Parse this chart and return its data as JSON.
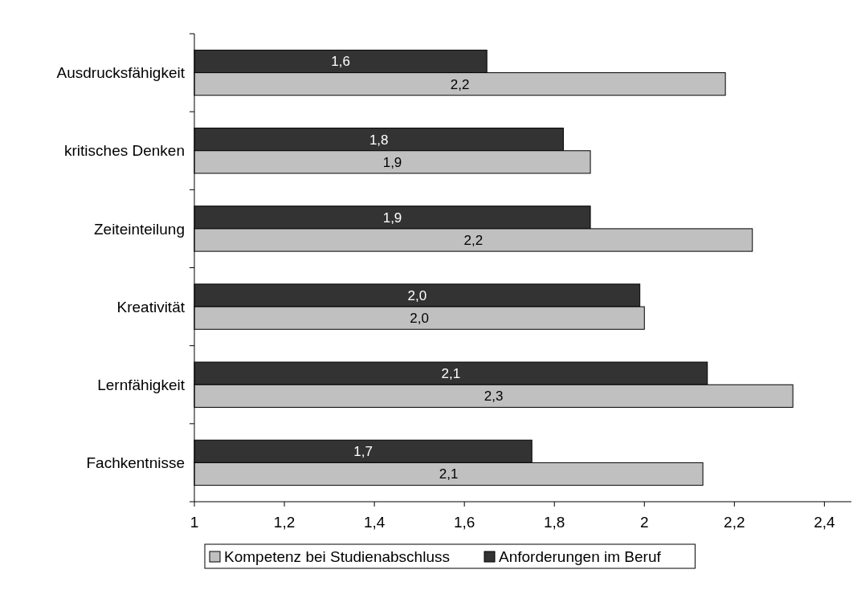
{
  "chart_data": {
    "type": "bar",
    "orientation": "horizontal",
    "categories": [
      "Ausdrucksfähigkeit",
      "kritisches Denken",
      "Zeiteinteilung",
      "Kreativität",
      "Lernfähigkeit",
      "Fachkentnisse"
    ],
    "series": [
      {
        "name": "Kompetenz bei Studienabschluss",
        "color": "#c0c0c0",
        "values": [
          2.18,
          1.88,
          2.24,
          2.0,
          2.33,
          2.13
        ],
        "value_labels": [
          "2,2",
          "1,9",
          "2,2",
          "2,0",
          "2,3",
          "2,1"
        ]
      },
      {
        "name": "Anforderungen im Beruf",
        "color": "#333333",
        "values": [
          1.65,
          1.82,
          1.88,
          1.99,
          2.14,
          1.75
        ],
        "value_labels": [
          "1,6",
          "1,8",
          "1,9",
          "2,0",
          "2,1",
          "1,7"
        ]
      }
    ],
    "xlim": [
      1,
      2.46
    ],
    "xticks": [
      1,
      {
        "value": 1.2,
        "label": "1,2"
      },
      {
        "value": 1.4,
        "label": "1,4"
      },
      {
        "value": 1.6,
        "label": "1,6"
      },
      {
        "value": 1.8,
        "label": "1,8"
      },
      2,
      {
        "value": 2.2,
        "label": "2,2"
      },
      {
        "value": 2.4,
        "label": "2,4"
      }
    ],
    "grid": false,
    "legend": "bottom"
  }
}
